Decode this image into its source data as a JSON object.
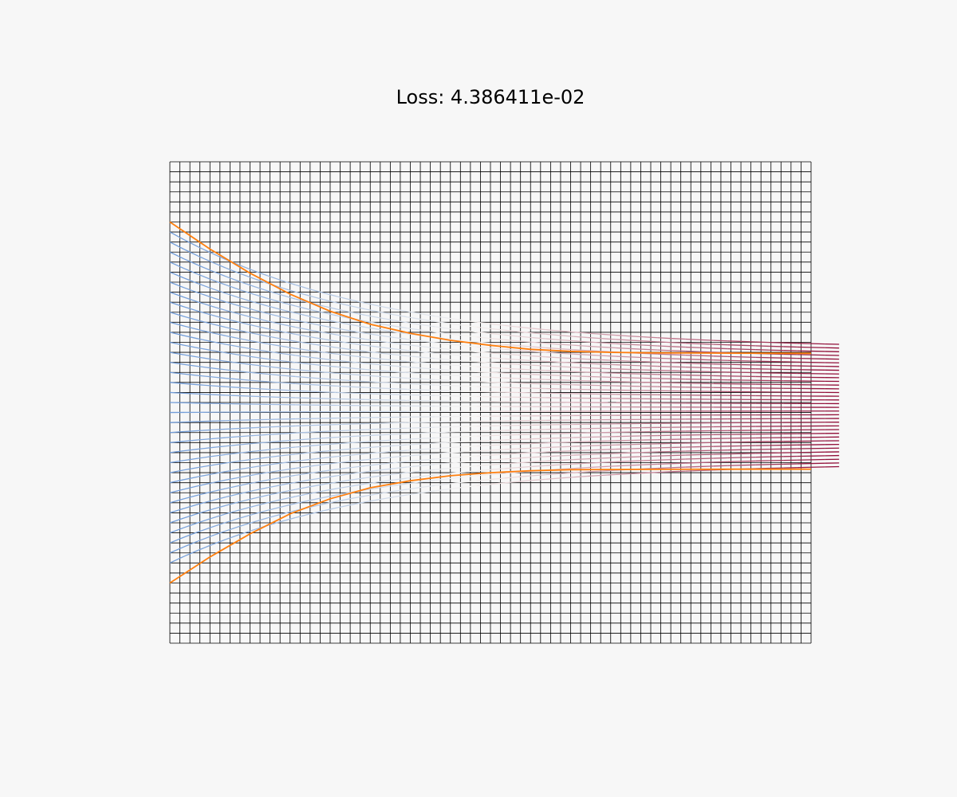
{
  "chart_data": {
    "type": "line",
    "title": "Loss: 4.386411e-02",
    "xlabel": "",
    "ylabel": "",
    "xlim": [
      0,
      64
    ],
    "ylim": [
      0,
      48
    ],
    "grid": true,
    "grid_columns": 64,
    "grid_rows": 48,
    "axes_visible": false,
    "colors": {
      "background": "#f7f7f7",
      "grid": "#000000",
      "boundary": "#ff7f0e",
      "trajectory_start": "#6f9bd8",
      "trajectory_mid": "#f7f4f1",
      "trajectory_end": "#8f0a35"
    },
    "boundary_curves": [
      {
        "side": "upper",
        "points": [
          [
            0,
            42
          ],
          [
            4,
            39.3
          ],
          [
            8,
            36.9
          ],
          [
            12,
            34.8
          ],
          [
            16,
            33.1
          ],
          [
            20,
            31.8
          ],
          [
            24,
            30.9
          ],
          [
            28,
            30.2
          ],
          [
            32,
            29.7
          ],
          [
            36,
            29.3
          ],
          [
            40,
            29.1
          ],
          [
            44,
            29.0
          ],
          [
            48,
            28.95
          ],
          [
            56,
            28.92
          ],
          [
            64,
            28.9
          ]
        ]
      },
      {
        "side": "lower",
        "points": [
          [
            0,
            6
          ],
          [
            4,
            8.6
          ],
          [
            8,
            10.9
          ],
          [
            12,
            12.9
          ],
          [
            16,
            14.4
          ],
          [
            20,
            15.5
          ],
          [
            24,
            16.2
          ],
          [
            28,
            16.7
          ],
          [
            32,
            17.0
          ],
          [
            36,
            17.2
          ],
          [
            40,
            17.3
          ],
          [
            48,
            17.33
          ],
          [
            56,
            17.35
          ],
          [
            64,
            17.35
          ]
        ]
      }
    ],
    "trajectories": {
      "count": 34,
      "x_start": 0,
      "x_end": 66.8,
      "y_start_range": [
        8.0,
        41.0
      ],
      "y_end_range": [
        17.6,
        29.8
      ]
    }
  }
}
